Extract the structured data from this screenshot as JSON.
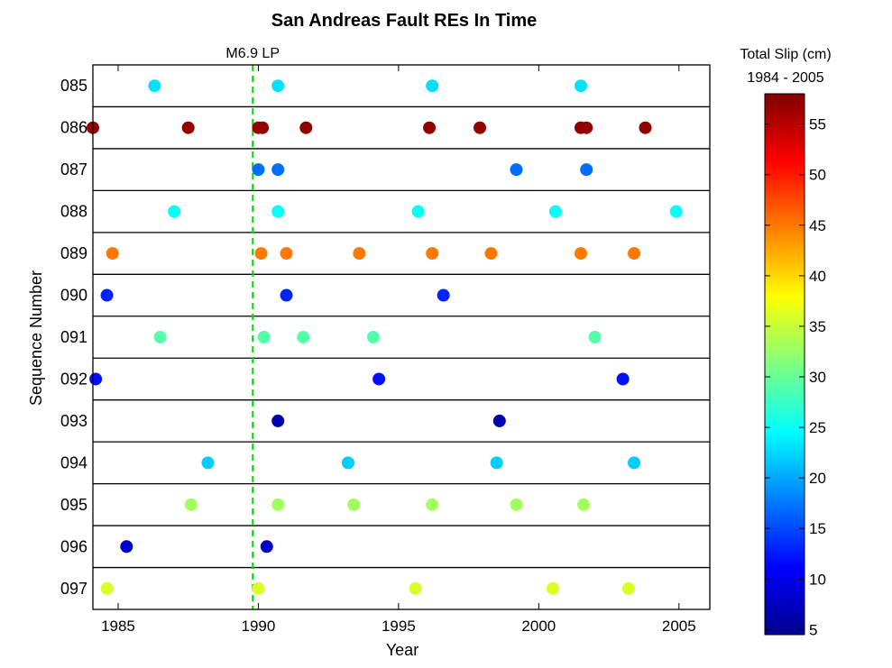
{
  "chart_data": {
    "type": "scatter",
    "title": "San Andreas Fault REs In Time",
    "xlabel": "Year",
    "ylabel": "Sequence Number",
    "xlim": [
      1984.1,
      2006.1
    ],
    "xticks": [
      1985,
      1990,
      1995,
      2000,
      2005
    ],
    "grid": false,
    "annotation": {
      "label": "M6.9 LP",
      "x": 1989.8,
      "color": "#00e000",
      "style": "dashed"
    },
    "colorbar": {
      "title_line1": "Total Slip (cm)",
      "title_line2": "1984 - 2005",
      "colormap": "jet",
      "range": [
        4.5,
        58
      ],
      "ticks": [
        5,
        10,
        15,
        20,
        25,
        30,
        35,
        40,
        45,
        50,
        55
      ]
    },
    "categories": [
      "085",
      "086",
      "087",
      "088",
      "089",
      "090",
      "091",
      "092",
      "093",
      "094",
      "095",
      "096",
      "097"
    ],
    "series": [
      {
        "sequence": "085",
        "slip": 23,
        "years": [
          1986.3,
          1990.7,
          1996.2,
          2001.5
        ]
      },
      {
        "sequence": "086",
        "slip": 57,
        "years": [
          1984.1,
          1987.5,
          1990.0,
          1990.15,
          1991.7,
          1996.1,
          1997.9,
          2001.5,
          2001.7,
          2003.8
        ]
      },
      {
        "sequence": "087",
        "slip": 17,
        "years": [
          1990.0,
          1990.7,
          1999.2,
          2001.7
        ]
      },
      {
        "sequence": "088",
        "slip": 25,
        "years": [
          1987.0,
          1990.7,
          1995.7,
          2000.6,
          2004.9
        ]
      },
      {
        "sequence": "089",
        "slip": 45,
        "years": [
          1984.8,
          1990.1,
          1991.0,
          1993.6,
          1996.2,
          1998.3,
          2001.5,
          2003.4
        ]
      },
      {
        "sequence": "090",
        "slip": 13,
        "years": [
          1984.6,
          1991.0,
          1996.6
        ]
      },
      {
        "sequence": "091",
        "slip": 29,
        "years": [
          1986.5,
          1990.2,
          1991.6,
          1994.1,
          2002.0
        ]
      },
      {
        "sequence": "092",
        "slip": 12,
        "years": [
          1984.2,
          1994.3,
          2003.0
        ]
      },
      {
        "sequence": "093",
        "slip": 7,
        "years": [
          1990.7,
          1998.6
        ]
      },
      {
        "sequence": "094",
        "slip": 22,
        "years": [
          1988.2,
          1993.2,
          1998.5,
          2003.4
        ]
      },
      {
        "sequence": "095",
        "slip": 33,
        "years": [
          1987.6,
          1990.7,
          1993.4,
          1996.2,
          1999.2,
          2001.6
        ]
      },
      {
        "sequence": "096",
        "slip": 8,
        "years": [
          1985.3,
          1990.3
        ]
      },
      {
        "sequence": "097",
        "slip": 36,
        "years": [
          1984.6,
          1990.0,
          1995.6,
          2000.5,
          2003.2
        ]
      }
    ]
  }
}
